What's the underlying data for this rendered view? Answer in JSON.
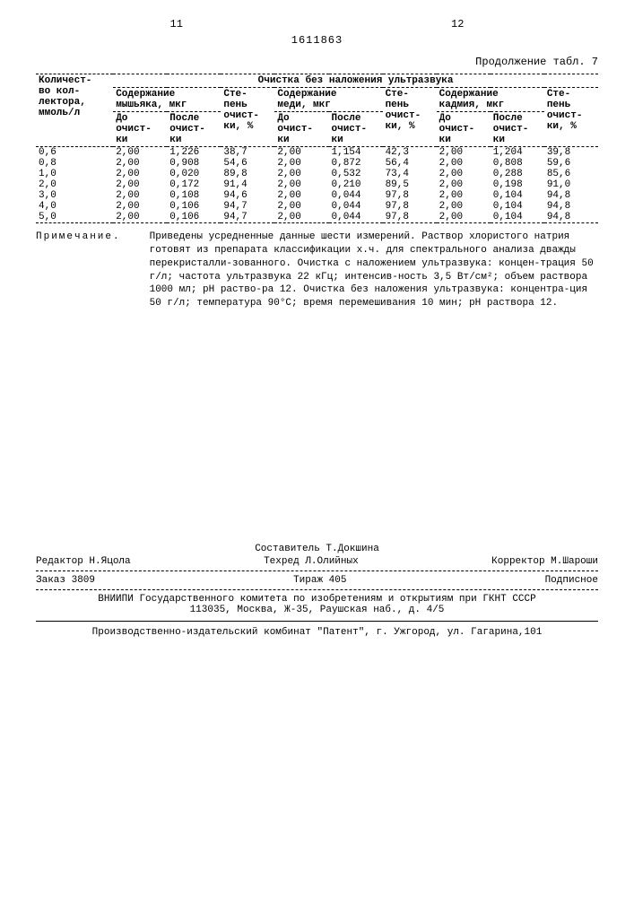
{
  "page_left": "11",
  "page_right": "12",
  "doc_number": "1611863",
  "continuation": "Продолжение табл. 7",
  "table": {
    "col_collector": "Количест-\nво кол-\nлектора,\nммоль/л",
    "super_header": "Очистка без наложения ультразвука",
    "group_arsenic": "Содержание\nмышьяка, мкг",
    "group_copper": "Содержание\nмеди, мкг",
    "group_cadmium": "Содержание\nкадмия, мкг",
    "degree": "Сте-\nпень\nочист-\nки, %",
    "before": "До\nочист-\nки",
    "after": "После\nочист-\nки",
    "rows": [
      {
        "c": "0,6",
        "ab": "2,00",
        "aa": "1,226",
        "ad": "38,7",
        "cb": "2,00",
        "ca": "1,154",
        "cd": "42,3",
        "kb": "2,00",
        "ka": "1,204",
        "kd": "39,8"
      },
      {
        "c": "0,8",
        "ab": "2,00",
        "aa": "0,908",
        "ad": "54,6",
        "cb": "2,00",
        "ca": "0,872",
        "cd": "56,4",
        "kb": "2,00",
        "ka": "0,808",
        "kd": "59,6"
      },
      {
        "c": "1,0",
        "ab": "2,00",
        "aa": "0,020",
        "ad": "89,8",
        "cb": "2,00",
        "ca": "0,532",
        "cd": "73,4",
        "kb": "2,00",
        "ka": "0,288",
        "kd": "85,6"
      },
      {
        "c": "2,0",
        "ab": "2,00",
        "aa": "0,172",
        "ad": "91,4",
        "cb": "2,00",
        "ca": "0,210",
        "cd": "89,5",
        "kb": "2,00",
        "ka": "0,198",
        "kd": "91,0"
      },
      {
        "c": "3,0",
        "ab": "2,00",
        "aa": "0,108",
        "ad": "94,6",
        "cb": "2,00",
        "ca": "0,044",
        "cd": "97,8",
        "kb": "2,00",
        "ka": "0,104",
        "kd": "94,8"
      },
      {
        "c": "4,0",
        "ab": "2,00",
        "aa": "0,106",
        "ad": "94,7",
        "cb": "2,00",
        "ca": "0,044",
        "cd": "97,8",
        "kb": "2,00",
        "ka": "0,104",
        "kd": "94,8"
      },
      {
        "c": "5,0",
        "ab": "2,00",
        "aa": "0,106",
        "ad": "94,7",
        "cb": "2,00",
        "ca": "0,044",
        "cd": "97,8",
        "kb": "2,00",
        "ka": "0,104",
        "kd": "94,8"
      }
    ]
  },
  "note_label": "Примечание.",
  "note_body": "Приведены усредненные данные шести измерений. Раствор хлористого натрия готовят из препарата классификации х.ч. для спектрального анализа дважды перекристалли-зованного. Очистка с наложением ультразвука: концен-трация 50 г/л; частота ультразвука 22 кГц; интенсив-ность 3,5 Вт/см²; объем раствора 1000 мл; pH раство-ра 12. Очистка без наложения ультразвука: концентра-ция 50 г/л; температура 90°С; время перемешивания 10 мин; pH раствора 12.",
  "credits": {
    "compiler": "Составитель Т.Докшина",
    "editor": "Редактор Н.Яцола",
    "techred": "Техред Л.Олийных",
    "corrector": "Корректор М.Шароши",
    "order": "Заказ 3809",
    "circulation": "Тираж 405",
    "subscription": "Подписное",
    "org1": "ВНИИПИ Государственного комитета по изобретениям и открытиям при ГКНТ СССР",
    "addr1": "113035, Москва, Ж-35, Раушская наб., д. 4/5",
    "org2": "Производственно-издательский комбинат \"Патент\", г. Ужгород, ул. Гагарина,101"
  }
}
